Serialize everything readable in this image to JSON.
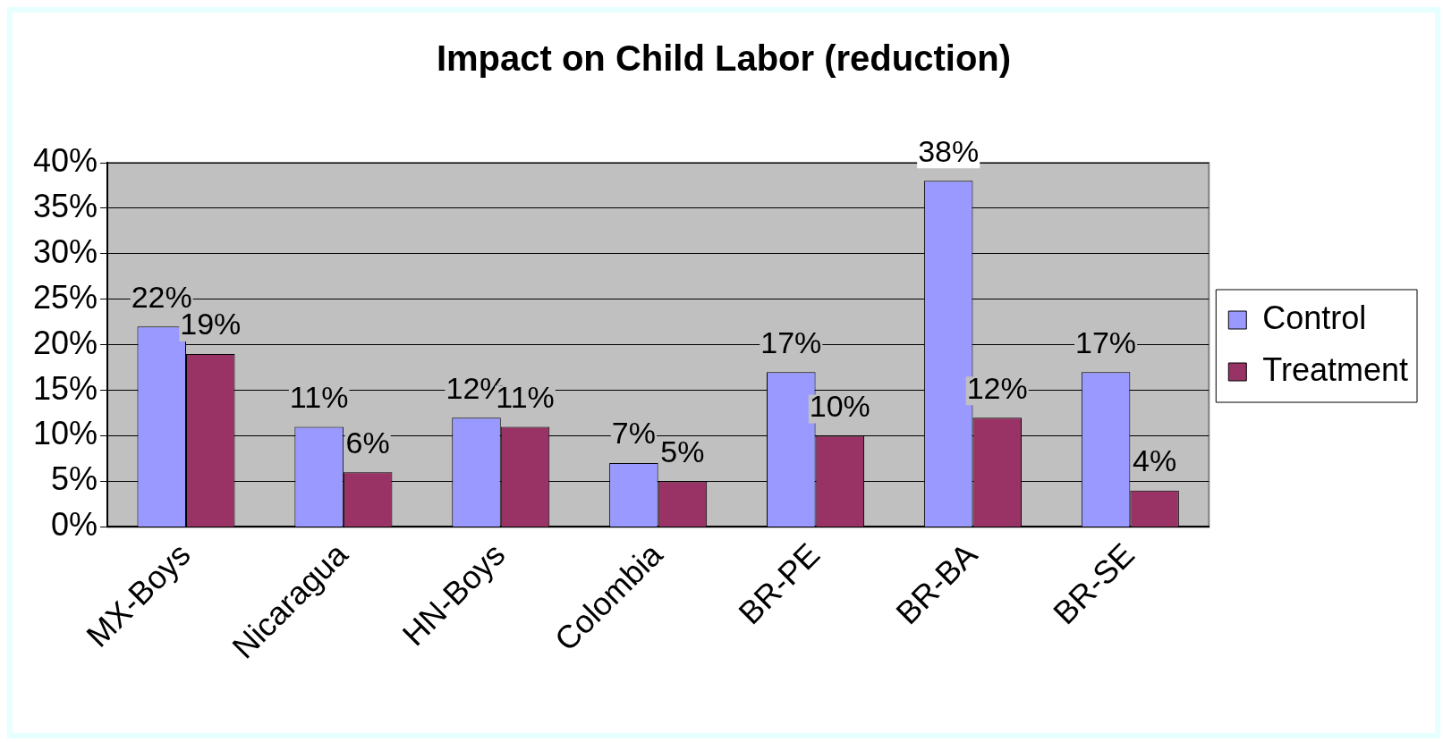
{
  "chart_data": {
    "type": "bar",
    "title": "Impact on Child Labor (reduction)",
    "categories": [
      "MX-Boys",
      "Nicaragua",
      "HN-Boys",
      "Colombia",
      "BR-PE",
      "BR-BA",
      "BR-SE"
    ],
    "series": [
      {
        "name": "Control",
        "color": "#9999ff",
        "values": [
          22,
          11,
          12,
          7,
          17,
          38,
          17
        ],
        "value_labels": [
          "22%",
          "11%",
          "12%",
          "7%",
          "17%",
          "38%",
          "17%"
        ]
      },
      {
        "name": "Treatment",
        "color": "#993366",
        "values": [
          19,
          6,
          11,
          5,
          10,
          12,
          4
        ],
        "value_labels": [
          "19%",
          "6%",
          "11%",
          "5%",
          "10%",
          "12%",
          "4%"
        ]
      }
    ],
    "ylim": [
      0,
      40
    ],
    "yticks": [
      {
        "value": 0,
        "label": "0%"
      },
      {
        "value": 5,
        "label": "5%"
      },
      {
        "value": 10,
        "label": "10%"
      },
      {
        "value": 15,
        "label": "15%"
      },
      {
        "value": 20,
        "label": "20%"
      },
      {
        "value": 25,
        "label": "25%"
      },
      {
        "value": 30,
        "label": "30%"
      },
      {
        "value": 35,
        "label": "35%"
      },
      {
        "value": 40,
        "label": "40%"
      }
    ],
    "grid": "y",
    "legend": "right"
  }
}
